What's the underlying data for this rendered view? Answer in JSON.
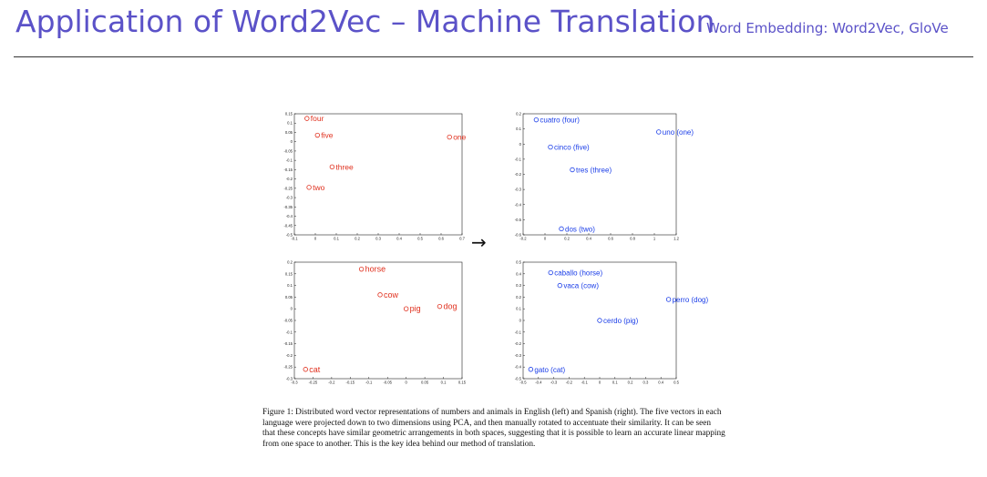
{
  "header": {
    "title": "Application of Word2Vec – Machine Translation",
    "topic": "Word Embedding: Word2Vec, GloVe"
  },
  "figure": {
    "arrow": "→",
    "caption": "Figure 1: Distributed word vector representations of numbers and animals in English (left) and Spanish (right). The five vectors in each language were projected down to two dimensions using PCA, and then manually rotated to accentuate their similarity. It can be seen that these concepts have similar geometric arrangements in both spaces, suggesting that it is possible to learn an accurate linear mapping from one space to another. This is the key idea behind our method of translation."
  },
  "colors": {
    "english": "#e0301e",
    "spanish": "#1a3de8",
    "title": "#5b52c8"
  },
  "chart_data": [
    {
      "type": "scatter",
      "title": "",
      "xlabel": "",
      "ylabel": "",
      "xlim": [
        -0.1,
        0.7
      ],
      "ylim": [
        -0.5,
        0.15
      ],
      "xticks": [
        "-0.1",
        "0",
        "0.1",
        "0.2",
        "0.3",
        "0.4",
        "0.5",
        "0.6",
        "0.7"
      ],
      "yticks": [
        "0.15",
        "0.1",
        "0.05",
        "0",
        "-0.05",
        "-0.1",
        "-0.15",
        "-0.2",
        "-0.25",
        "-0.3",
        "-0.35",
        "-0.4",
        "-0.45",
        "-0.5"
      ],
      "color": "#e0301e",
      "points": [
        {
          "label": "four",
          "x": -0.04,
          "y": 0.125
        },
        {
          "label": "five",
          "x": 0.01,
          "y": 0.035
        },
        {
          "label": "one",
          "x": 0.64,
          "y": 0.025
        },
        {
          "label": "three",
          "x": 0.08,
          "y": -0.135
        },
        {
          "label": "two",
          "x": -0.03,
          "y": -0.245
        }
      ]
    },
    {
      "type": "scatter",
      "title": "",
      "xlabel": "",
      "ylabel": "",
      "xlim": [
        -0.2,
        1.2
      ],
      "ylim": [
        -0.6,
        0.2
      ],
      "xticks": [
        "-0.2",
        "0",
        "0.2",
        "0.4",
        "0.6",
        "0.8",
        "1",
        "1.2"
      ],
      "yticks": [
        "0.2",
        "0.1",
        "0",
        "-0.1",
        "-0.2",
        "-0.3",
        "-0.4",
        "-0.5",
        "-0.6"
      ],
      "color": "#1a3de8",
      "points": [
        {
          "label": "cuatro (four)",
          "x": -0.08,
          "y": 0.16
        },
        {
          "label": "uno (one)",
          "x": 1.04,
          "y": 0.08
        },
        {
          "label": "cinco (five)",
          "x": 0.05,
          "y": -0.02
        },
        {
          "label": "tres (three)",
          "x": 0.25,
          "y": -0.17
        },
        {
          "label": "dos (two)",
          "x": 0.15,
          "y": -0.56
        }
      ]
    },
    {
      "type": "scatter",
      "title": "",
      "xlabel": "",
      "ylabel": "",
      "xlim": [
        -0.3,
        0.15
      ],
      "ylim": [
        -0.3,
        0.2
      ],
      "xticks": [
        "-0.3",
        "-0.25",
        "-0.2",
        "-0.15",
        "-0.1",
        "-0.05",
        "0",
        "0.05",
        "0.1",
        "0.15"
      ],
      "yticks": [
        "0.2",
        "0.15",
        "0.1",
        "0.05",
        "0",
        "-0.05",
        "-0.1",
        "-0.15",
        "-0.2",
        "-0.25",
        "-0.3"
      ],
      "color": "#e0301e",
      "points": [
        {
          "label": "horse",
          "x": -0.12,
          "y": 0.17
        },
        {
          "label": "cow",
          "x": -0.07,
          "y": 0.06
        },
        {
          "label": "pig",
          "x": 0.0,
          "y": 0.0
        },
        {
          "label": "dog",
          "x": 0.09,
          "y": 0.01
        },
        {
          "label": "cat",
          "x": -0.27,
          "y": -0.26
        }
      ]
    },
    {
      "type": "scatter",
      "title": "",
      "xlabel": "",
      "ylabel": "",
      "xlim": [
        -0.5,
        0.5
      ],
      "ylim": [
        -0.5,
        0.5
      ],
      "xticks": [
        "-0.5",
        "-0.4",
        "-0.3",
        "-0.2",
        "-0.1",
        "0",
        "0.1",
        "0.2",
        "0.3",
        "0.4",
        "0.5"
      ],
      "yticks": [
        "0.5",
        "0.4",
        "0.3",
        "0.2",
        "0.1",
        "0",
        "-0.1",
        "-0.2",
        "-0.3",
        "-0.4",
        "-0.5"
      ],
      "color": "#1a3de8",
      "points": [
        {
          "label": "caballo (horse)",
          "x": -0.32,
          "y": 0.41
        },
        {
          "label": "vaca (cow)",
          "x": -0.26,
          "y": 0.3
        },
        {
          "label": "perro (dog)",
          "x": 0.45,
          "y": 0.18
        },
        {
          "label": "cerdo (pig)",
          "x": 0.0,
          "y": 0.0
        },
        {
          "label": "gato (cat)",
          "x": -0.45,
          "y": -0.42
        }
      ]
    }
  ]
}
